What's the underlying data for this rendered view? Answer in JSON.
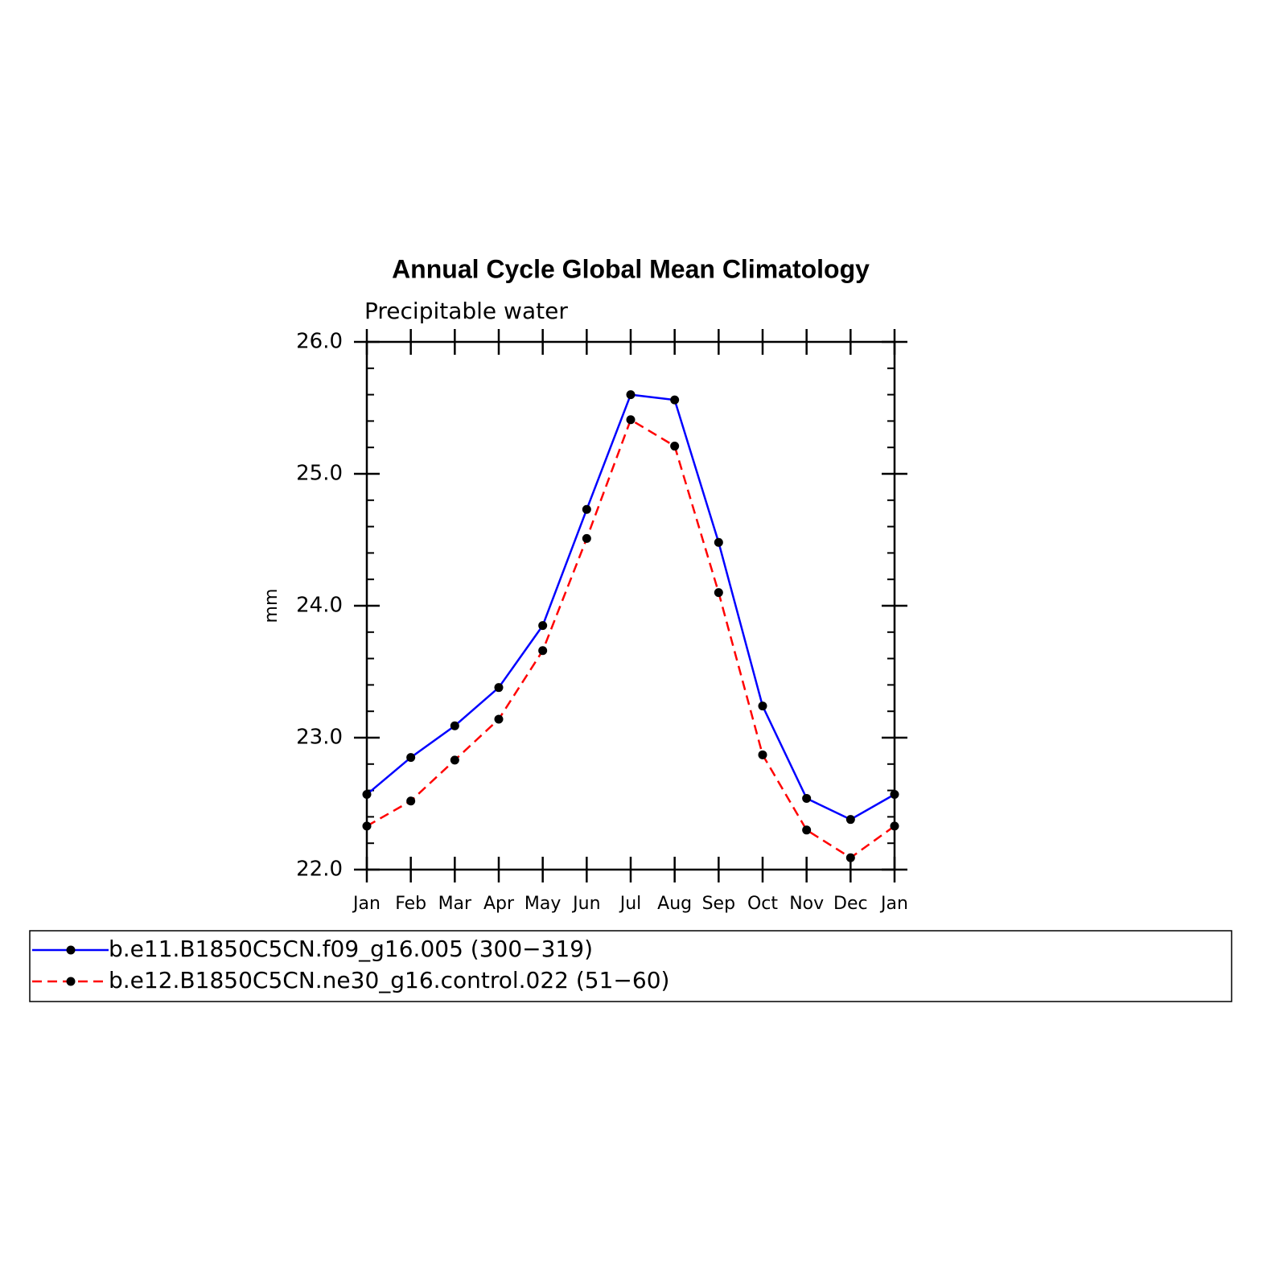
{
  "chart_data": {
    "type": "line",
    "title": "Annual Cycle Global Mean Climatology",
    "subtitle": "Precipitable water",
    "y_label": "mm",
    "categories": [
      "Jan",
      "Feb",
      "Mar",
      "Apr",
      "May",
      "Jun",
      "Jul",
      "Aug",
      "Sep",
      "Oct",
      "Nov",
      "Dec",
      "Jan"
    ],
    "series": [
      {
        "name": "b.e11.B1850C5CN.f09_g16.005 (300−319)",
        "color": "#0000ff",
        "dash": false,
        "values": [
          22.57,
          22.85,
          23.09,
          23.38,
          23.85,
          24.73,
          25.6,
          25.56,
          24.48,
          23.24,
          22.54,
          22.38,
          22.57
        ]
      },
      {
        "name": "b.e12.B1850C5CN.ne30_g16.control.022 (51−60)",
        "color": "#ff0000",
        "dash": true,
        "values": [
          22.33,
          22.52,
          22.83,
          23.14,
          23.66,
          24.51,
          25.41,
          25.21,
          24.1,
          22.87,
          22.3,
          22.09,
          22.33
        ]
      }
    ],
    "marker_color": "#000000",
    "ylim": [
      22,
      26
    ],
    "yticks": [
      {
        "value": 22,
        "label": "22.0"
      },
      {
        "value": 23,
        "label": "23.0"
      },
      {
        "value": 24,
        "label": "24.0"
      },
      {
        "value": 25,
        "label": "25.0"
      },
      {
        "value": 26,
        "label": "26.0"
      }
    ],
    "yminorticks": [
      22.2,
      22.4,
      22.6,
      22.8,
      23.2,
      23.4,
      23.6,
      23.8,
      24.2,
      24.4,
      24.6,
      24.8,
      25.2,
      25.4,
      25.6,
      25.8
    ],
    "grid": false
  }
}
